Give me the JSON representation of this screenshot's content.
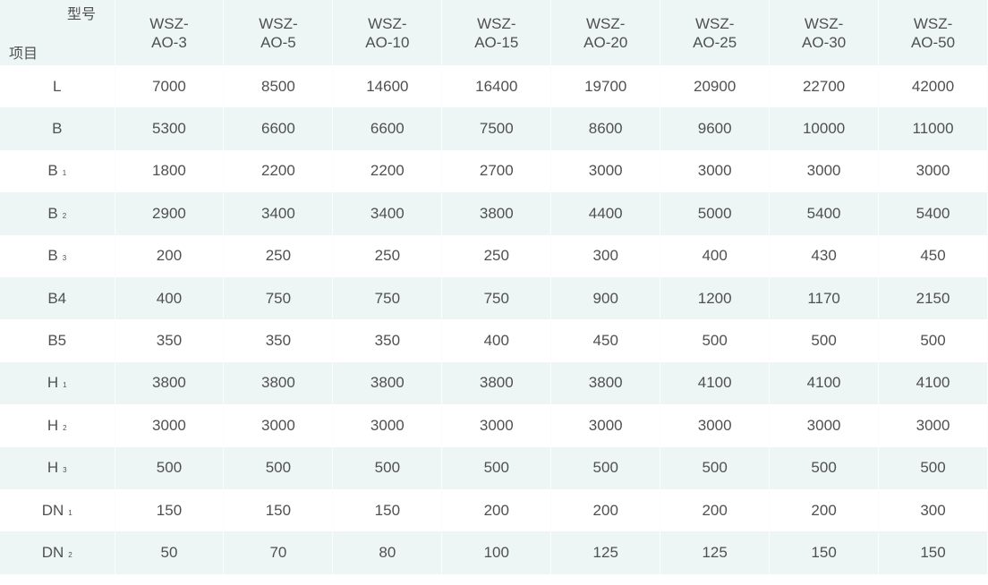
{
  "header": {
    "model_label": "型号",
    "item_label": "项目",
    "models": [
      {
        "line1": "WSZ-",
        "line2": "AO-3"
      },
      {
        "line1": "WSZ-",
        "line2": "AO-5"
      },
      {
        "line1": "WSZ-",
        "line2": "AO-10"
      },
      {
        "line1": "WSZ-",
        "line2": "AO-15"
      },
      {
        "line1": "WSZ-",
        "line2": "AO-20"
      },
      {
        "line1": "WSZ-",
        "line2": "AO-25"
      },
      {
        "line1": "WSZ-",
        "line2": "AO-30"
      },
      {
        "line1": "WSZ-",
        "line2": "AO-50"
      }
    ]
  },
  "rows": [
    {
      "item": "L",
      "sub": "",
      "values": [
        "7000",
        "8500",
        "14600",
        "16400",
        "19700",
        "20900",
        "22700",
        "42000"
      ]
    },
    {
      "item": "B",
      "sub": "",
      "values": [
        "5300",
        "6600",
        "6600",
        "7500",
        "8600",
        "9600",
        "10000",
        "11000"
      ]
    },
    {
      "item": "B",
      "sub": "1",
      "values": [
        "1800",
        "2200",
        "2200",
        "2700",
        "3000",
        "3000",
        "3000",
        "3000"
      ]
    },
    {
      "item": "B",
      "sub": "2",
      "values": [
        "2900",
        "3400",
        "3400",
        "3800",
        "4400",
        "5000",
        "5400",
        "5400"
      ]
    },
    {
      "item": "B",
      "sub": "3",
      "values": [
        "200",
        "250",
        "250",
        "250",
        "300",
        "400",
        "430",
        "450"
      ]
    },
    {
      "item": "B4",
      "sub": "",
      "values": [
        "400",
        "750",
        "750",
        "750",
        "900",
        "1200",
        "1170",
        "2150"
      ]
    },
    {
      "item": "B5",
      "sub": "",
      "values": [
        "350",
        "350",
        "350",
        "400",
        "450",
        "500",
        "500",
        "500"
      ]
    },
    {
      "item": "H",
      "sub": "1",
      "values": [
        "3800",
        "3800",
        "3800",
        "3800",
        "3800",
        "4100",
        "4100",
        "4100"
      ]
    },
    {
      "item": "H",
      "sub": "2",
      "values": [
        "3000",
        "3000",
        "3000",
        "3000",
        "3000",
        "3000",
        "3000",
        "3000"
      ]
    },
    {
      "item": "H",
      "sub": "3",
      "values": [
        "500",
        "500",
        "500",
        "500",
        "500",
        "500",
        "500",
        "500"
      ]
    },
    {
      "item": "DN",
      "sub": "1",
      "values": [
        "150",
        "150",
        "150",
        "200",
        "200",
        "200",
        "200",
        "300"
      ]
    },
    {
      "item": "DN",
      "sub": "2",
      "values": [
        "50",
        "70",
        "80",
        "100",
        "125",
        "125",
        "150",
        "150"
      ]
    }
  ],
  "colors": {
    "stripe": "#eef5f5",
    "text": "#505050"
  }
}
